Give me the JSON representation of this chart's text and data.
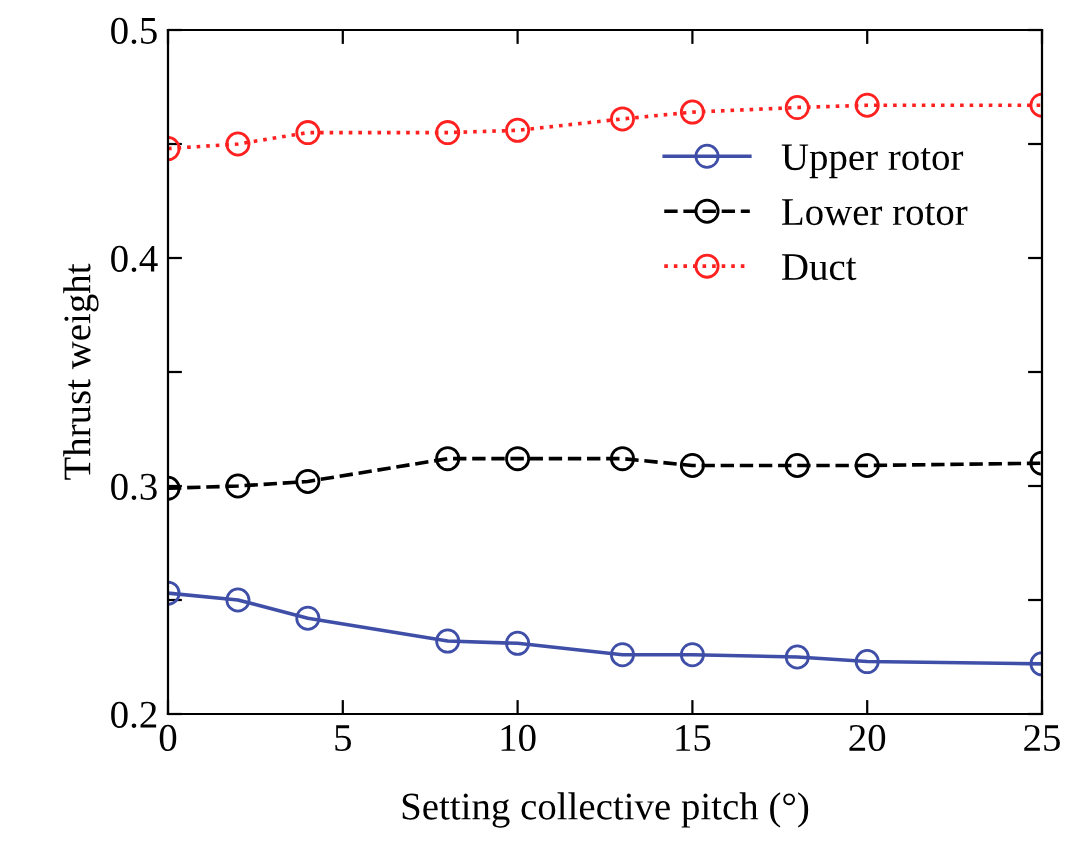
{
  "chart_data": {
    "type": "line",
    "xlabel": "Setting collective pitch (°)",
    "ylabel": "Thrust weight",
    "x": [
      0,
      2,
      4,
      8,
      10,
      13,
      15,
      18,
      20,
      25
    ],
    "series": [
      {
        "name": "Upper rotor",
        "color": "#3f4fa8",
        "line_style": "solid",
        "values": [
          0.253,
          0.25,
          0.242,
          0.232,
          0.231,
          0.226,
          0.226,
          0.225,
          0.223,
          0.222
        ]
      },
      {
        "name": "Lower rotor",
        "color": "#000000",
        "line_style": "dashed",
        "values": [
          0.299,
          0.3,
          0.302,
          0.312,
          0.312,
          0.312,
          0.309,
          0.309,
          0.309,
          0.31
        ]
      },
      {
        "name": "Duct",
        "color": "#ff2020",
        "line_style": "dotted",
        "values": [
          0.448,
          0.45,
          0.455,
          0.455,
          0.456,
          0.461,
          0.464,
          0.466,
          0.467,
          0.467
        ]
      }
    ],
    "marker": "circle",
    "xlim": [
      0,
      25
    ],
    "xticks": [
      0,
      5,
      10,
      15,
      20,
      25
    ],
    "ylim": [
      0.2,
      0.5
    ],
    "yticks": [
      0.2,
      {
        "value": 0.25,
        "label": null
      },
      0.3,
      {
        "value": 0.35,
        "label": null
      },
      0.4,
      {
        "value": 0.45,
        "label": null
      },
      0.5
    ],
    "grid": false,
    "legend": "top right"
  }
}
